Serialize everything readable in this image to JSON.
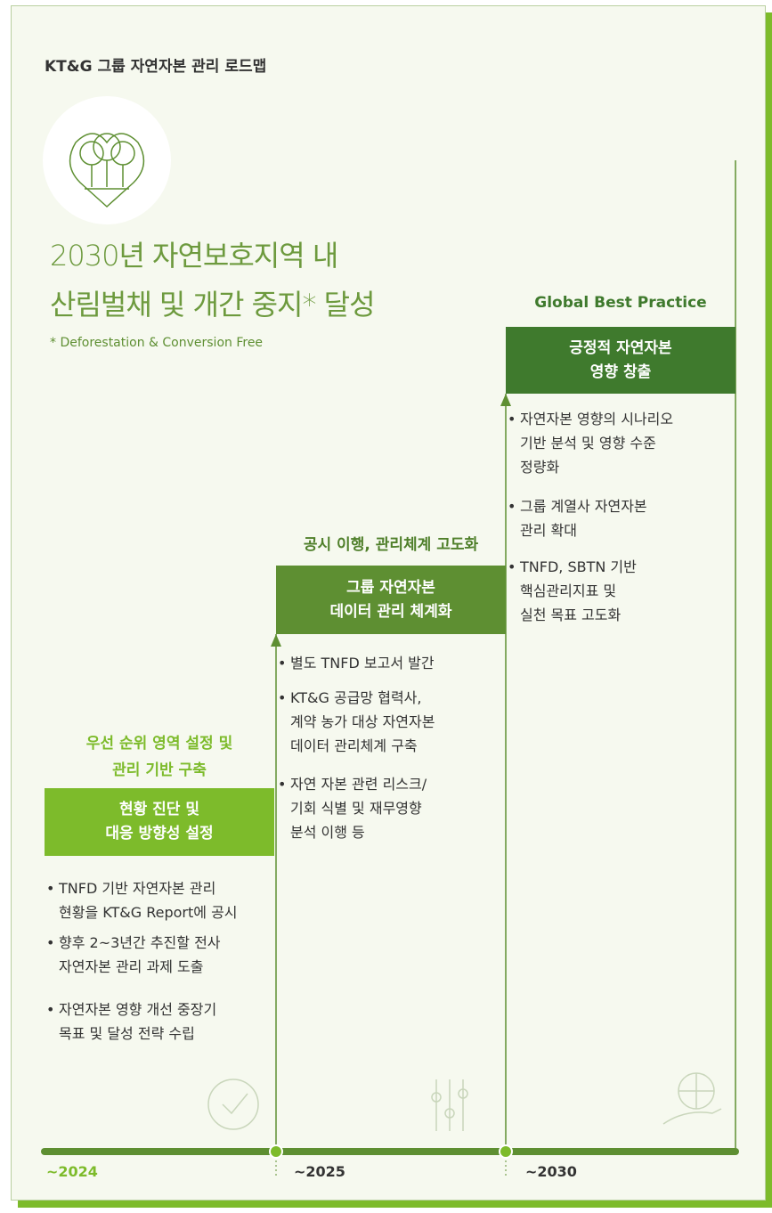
{
  "title": "KT&G 그룹 자연자본 관리 로드맵",
  "goal": {
    "lines": [
      "2030년 자연보호지역 내",
      "산림벌채 및 개간 중지* 달성"
    ],
    "footnote": "* Deforestation & Conversion Free"
  },
  "stages": [
    {
      "heading": [
        "우선 순위 영역 설정 및",
        "관리 기반 구축"
      ],
      "box": [
        "현황 진단 및",
        "대응 방향성 설정"
      ],
      "bullets": [
        [
          "TNFD 기반 자연자본 관리",
          "현황을 KT&G Report에 공시"
        ],
        [
          "향후 2~3년간 추진할 전사",
          "자연자본 관리 과제 도출"
        ],
        [
          "자연자본 영향 개선 중장기",
          "목표 및 달성 전략 수립"
        ]
      ],
      "period": "~2024"
    },
    {
      "heading": [
        "공시 이행, 관리체계 고도화"
      ],
      "box": [
        "그룹 자연자본",
        "데이터 관리 체계화"
      ],
      "bullets": [
        [
          "별도 TNFD 보고서 발간"
        ],
        [
          "KT&G 공급망 협력사,",
          "계약 농가 대상 자연자본",
          "데이터 관리체계 구축"
        ],
        [
          "자연 자본 관련 리스크/",
          "기회 식별 및 재무영향",
          "분석 이행 등"
        ]
      ],
      "period": "~2025"
    },
    {
      "heading": [
        "Global Best Practice"
      ],
      "box": [
        "긍정적 자연자본",
        "영향 창출"
      ],
      "bullets": [
        [
          "자연자본 영향의 시나리오",
          "기반 분석 및 영향 수준",
          "정량화"
        ],
        [
          "그룹 계열사 자연자본",
          "관리 확대"
        ],
        [
          "TNFD, SBTN 기반",
          "핵심관리지표 및",
          "실천 목표 고도화"
        ]
      ],
      "period": "~2030"
    }
  ]
}
